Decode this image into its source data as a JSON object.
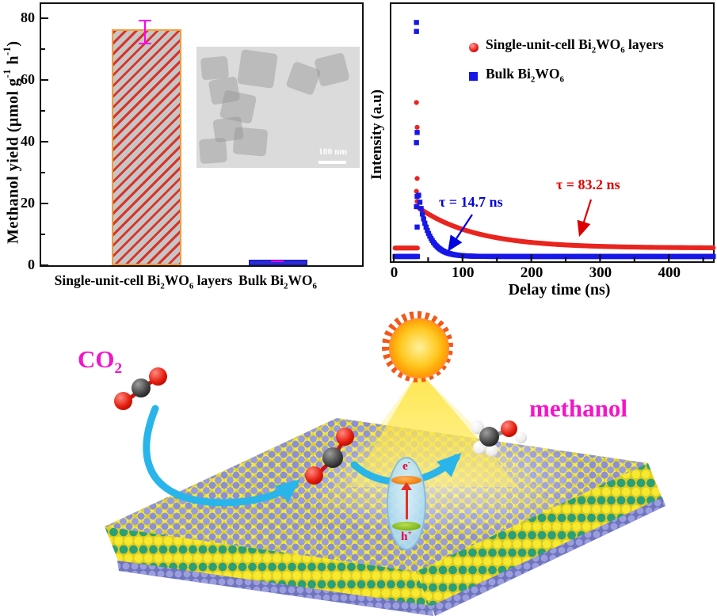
{
  "chart_data": [
    {
      "type": "bar",
      "title": "",
      "ylabel": "Methanol yield (umol g-1 h-1)",
      "categories": [
        "Single-unit-cell Bi2WO6 layers",
        "Bulk Bi2WO6"
      ],
      "values": [
        75.5,
        1.2
      ],
      "errors": [
        4.0,
        0.4
      ],
      "ylim": [
        0,
        84
      ],
      "yticks": [
        0,
        20,
        40,
        60,
        80
      ],
      "bar_styles": [
        "gray with red diagonal hatch, orange border",
        "solid blue"
      ],
      "error_bar_color": "#ff00f0",
      "inset": "TEM image of square Bi2WO6 nanosheets, scale bar 100 nm"
    },
    {
      "type": "scatter",
      "title": "",
      "xlabel": "Delay time (ns)",
      "ylabel": "Intensity (a.u)",
      "xlim": [
        0,
        470
      ],
      "xticks": [
        0,
        100,
        200,
        300,
        400
      ],
      "minor_tick_step": 50,
      "legend_position": "upper middle",
      "series": [
        {
          "name": "Single-unit-cell Bi2WO6 layers",
          "color": "#e8251f",
          "marker": "circle",
          "baseline": 0.058,
          "peak": 0.16,
          "tau_ns": 83.2,
          "t0_ns": 35,
          "tmax_ns": 466,
          "step_ns": 1.8,
          "spike_points": [
            [
              33,
              0.627
            ],
            [
              34,
              0.53
            ],
            [
              33,
              0.47
            ],
            [
              34,
              0.33
            ],
            [
              33,
              0.28
            ],
            [
              34,
              0.24
            ]
          ]
        },
        {
          "name": "Bulk Bi2WO6",
          "color": "#1717e6",
          "marker": "square",
          "baseline": 0.025,
          "peak": 0.26,
          "tau_ns": 14.7,
          "t0_ns": 35,
          "tmax_ns": 466,
          "step_ns": 1.8,
          "spike_points": [
            [
              33,
              0.94
            ],
            [
              33,
              0.905
            ],
            [
              34,
              0.51
            ],
            [
              33,
              0.47
            ],
            [
              34,
              0.26
            ],
            [
              33,
              0.22
            ],
            [
              34,
              0.14
            ]
          ]
        }
      ],
      "annotations": [
        {
          "text": "t = 14.7 ns",
          "series": "Bulk Bi2WO6",
          "color": "#0000dd"
        },
        {
          "text": "t = 83.2 ns",
          "series": "Single-unit-cell Bi2WO6 layers",
          "color": "#dd0000"
        }
      ]
    }
  ],
  "ui": {
    "left_chart": {
      "ylabel_rich": [
        [
          "Methanol yield (",
          ""
        ],
        [
          "μ",
          ""
        ],
        [
          "mol g",
          ""
        ],
        [
          "-1",
          "sup"
        ],
        [
          " h",
          ""
        ],
        [
          "-1",
          "sup"
        ],
        [
          ")",
          ""
        ]
      ],
      "ytick_labels": [
        "0",
        "20",
        "40",
        "60",
        "80"
      ],
      "cat1_rich": [
        [
          "Single-unit-cell Bi",
          ""
        ],
        [
          "2",
          "sub"
        ],
        [
          "WO",
          ""
        ],
        [
          "6",
          "sub"
        ],
        [
          " layers",
          ""
        ]
      ],
      "cat2_rich": [
        [
          "Bulk Bi",
          ""
        ],
        [
          "2",
          "sub"
        ],
        [
          "WO",
          ""
        ],
        [
          "6",
          "sub"
        ]
      ],
      "inset_scale_label": "100 nm"
    },
    "right_chart": {
      "ylabel": "Intensity (a.u)",
      "xlabel": "Delay time (ns)",
      "legend1_rich": [
        [
          "Single-unit-cell Bi",
          ""
        ],
        [
          "2",
          "sub"
        ],
        [
          "WO",
          ""
        ],
        [
          "6",
          "sub"
        ],
        [
          " layers",
          ""
        ]
      ],
      "legend2_rich": [
        [
          "Bulk Bi",
          ""
        ],
        [
          "2",
          "sub"
        ],
        [
          "WO",
          ""
        ],
        [
          "6",
          "sub"
        ]
      ],
      "tau_blue": "τ = 14.7 ns",
      "tau_red": "τ = 83.2 ns"
    },
    "diagram": {
      "co2_rich": [
        [
          "CO",
          ""
        ],
        [
          "2",
          "sub"
        ]
      ],
      "methanol_label": "methanol",
      "electron_rich": [
        [
          "e",
          ""
        ],
        [
          "-",
          "sup"
        ]
      ],
      "hole_rich": [
        [
          "h",
          ""
        ],
        [
          "+",
          "sup"
        ]
      ]
    },
    "colors": {
      "magenta_label": "#f415c6",
      "arrow_cyan": "#29b5ea",
      "error_bar": "#ff00f0",
      "bar_border_orange": "#f09d3a",
      "hatch_red": "#d8342a",
      "bulk_bar_blue": "#2a2ad8",
      "series_red": "#e8251f",
      "series_blue": "#1717e6",
      "sun_orange": "#f4511e",
      "electron_disc": "#f07c0a",
      "hole_disc": "#7fb618"
    }
  }
}
